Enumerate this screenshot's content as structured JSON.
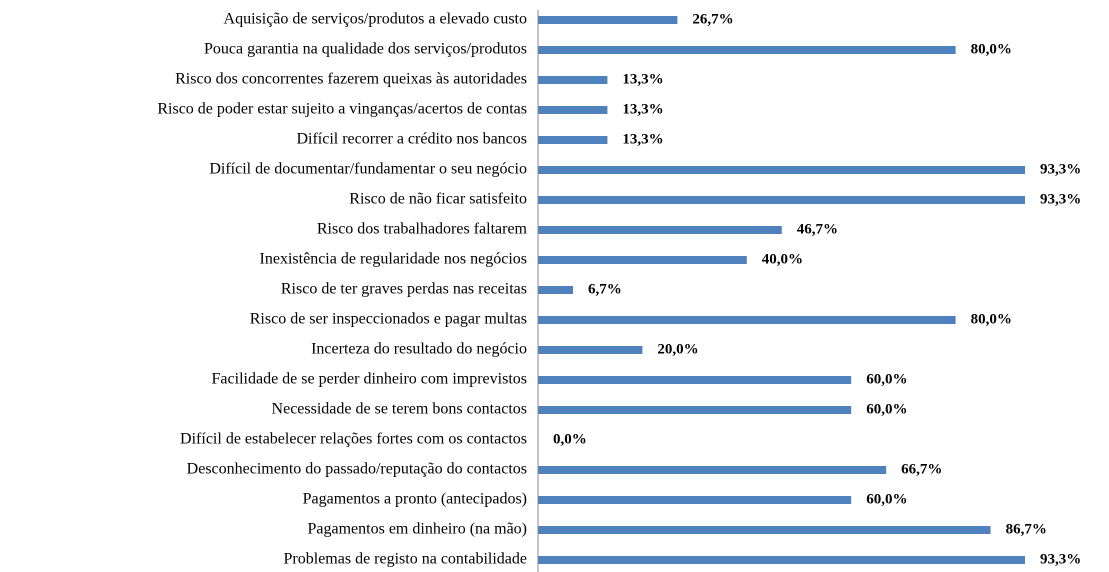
{
  "chart_data": {
    "type": "barh",
    "categories": [
      "Aquisição de serviços/produtos a elevado custo",
      "Pouca garantia na qualidade dos serviços/produtos",
      "Risco dos concorrentes fazerem queixas às autoridades",
      "Risco de poder estar sujeito a vinganças/acertos  de contas",
      "Difícil recorrer  a crédito nos bancos",
      "Difícil de documentar/fundamentar o seu negócio",
      "Risco de não ficar satisfeito",
      "Risco dos trabalhadores faltarem",
      "Inexistência de regularidade nos negócios",
      "Risco de ter graves perdas nas receitas",
      "Risco de ser inspeccionados e pagar multas",
      "Incerteza do resultado do negócio",
      "Facilidade de se perder dinheiro com imprevistos",
      "Necessidade de se terem bons contactos",
      "Difícil de estabelecer relações fortes com os contactos",
      "Desconhecimento do passado/reputação do contactos",
      "Pagamentos a pronto (antecipados)",
      "Pagamentos em dinheiro (na mão)",
      "Problemas de registo na contabilidade"
    ],
    "values": [
      26.7,
      80.0,
      13.3,
      13.3,
      13.3,
      93.3,
      93.3,
      46.7,
      40.0,
      6.7,
      80.0,
      20.0,
      60.0,
      60.0,
      0.0,
      66.7,
      60.0,
      86.7,
      93.3
    ],
    "value_labels": [
      "26,7%",
      "80,0%",
      "13,3%",
      "13,3%",
      "13,3%",
      "93,3%",
      "93,3%",
      "46,7%",
      "40,0%",
      "6,7%",
      "80,0%",
      "20,0%",
      "60,0%",
      "60,0%",
      "0,0%",
      "66,7%",
      "60,0%",
      "86,7%",
      "93,3%"
    ],
    "color": "#4f81bd",
    "xlim": [
      0,
      100
    ]
  }
}
